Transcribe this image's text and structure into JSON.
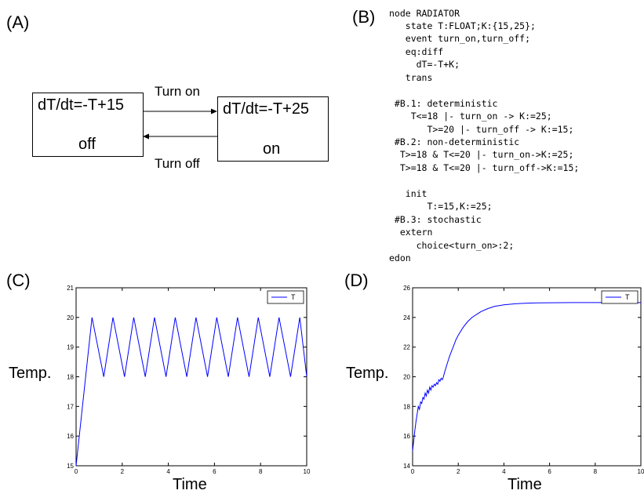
{
  "panels": {
    "a": "(A)",
    "b": "(B)",
    "c": "(C)",
    "d": "(D)"
  },
  "automaton": {
    "off_state": {
      "equation": "dT/dt=-T+15",
      "name": "off"
    },
    "on_state": {
      "equation": "dT/dt=-T+25",
      "name": "on"
    },
    "edges": {
      "turn_on": "Turn on",
      "turn_off": "Turn off"
    }
  },
  "code": {
    "lines": [
      "node RADIATOR",
      "   state T:FLOAT;K:{15,25};",
      "   event turn_on,turn_off;",
      "   eq:diff",
      "     dT=-T+K;",
      "   trans",
      "",
      " #B.1: deterministic",
      "    T<=18 |- turn_on -> K:=25;",
      "       T>=20 |- turn_off -> K:=15;",
      " #B.2: non-deterministic",
      "  T>=18 & T<=20 |- turn_on->K:=25;",
      "  T>=18 & T<=20 |- turn_off->K:=15;",
      "",
      "   init",
      "       T:=15,K:=25;",
      " #B.3: stochastic",
      "  extern",
      "     choice<turn_on>:2;",
      "edon"
    ]
  },
  "chart_data": [
    {
      "type": "line",
      "panel": "C",
      "xlabel": "Time",
      "ylabel": "Temp.",
      "xlim": [
        0,
        10
      ],
      "ylim": [
        15,
        21
      ],
      "xticks": [
        "0",
        "2",
        "4",
        "6",
        "8",
        "10"
      ],
      "yticks": [
        "15",
        "16",
        "17",
        "18",
        "19",
        "20",
        "21"
      ],
      "legend": "top-right",
      "grid": false,
      "series": [
        {
          "name": "T",
          "color": "#0000ff",
          "x": [
            0,
            0.69,
            1.2,
            1.6,
            2.1,
            2.5,
            3.0,
            3.4,
            3.9,
            4.3,
            4.8,
            5.2,
            5.7,
            6.1,
            6.6,
            7.0,
            7.5,
            7.9,
            8.4,
            8.8,
            9.3,
            9.7,
            10
          ],
          "y": [
            15,
            20,
            18,
            20,
            18,
            20,
            18,
            20,
            18,
            20,
            18,
            20,
            18,
            20,
            18,
            20,
            18,
            20,
            18,
            20,
            18,
            20,
            18
          ]
        }
      ]
    },
    {
      "type": "line",
      "panel": "D",
      "xlabel": "Time",
      "ylabel": "Temp.",
      "xlim": [
        0,
        10
      ],
      "ylim": [
        14,
        26
      ],
      "xticks": [
        "0",
        "2",
        "4",
        "6",
        "8",
        "10"
      ],
      "yticks": [
        "14",
        "16",
        "18",
        "20",
        "22",
        "24",
        "26"
      ],
      "legend": "top-right",
      "grid": false,
      "series": [
        {
          "name": "T",
          "color": "#0000ff",
          "x": [
            0,
            0.05,
            0.1,
            0.15,
            0.2,
            0.25,
            0.3,
            0.35,
            0.4,
            0.45,
            0.5,
            0.55,
            0.6,
            0.65,
            0.7,
            0.75,
            0.8,
            0.85,
            0.9,
            0.95,
            1.0,
            1.05,
            1.1,
            1.15,
            1.2,
            1.25,
            1.3,
            1.35,
            1.4,
            1.5,
            1.6,
            1.7,
            1.8,
            1.9,
            2.0,
            2.2,
            2.4,
            2.6,
            2.8,
            3.0,
            3.3,
            3.6,
            4.0,
            4.5,
            5.0,
            5.5,
            6.0,
            7.0,
            8.0,
            9.0,
            10.0
          ],
          "y": [
            15.0,
            15.7,
            16.4,
            17.0,
            17.5,
            18.0,
            17.8,
            18.3,
            18.2,
            18.6,
            18.5,
            18.9,
            18.7,
            19.1,
            18.9,
            19.3,
            19.1,
            19.4,
            19.3,
            19.5,
            19.4,
            19.6,
            19.5,
            19.8,
            19.7,
            19.9,
            19.8,
            20.0,
            20.3,
            20.8,
            21.3,
            21.7,
            22.1,
            22.5,
            22.8,
            23.3,
            23.7,
            24.0,
            24.2,
            24.4,
            24.6,
            24.75,
            24.85,
            24.92,
            24.96,
            24.98,
            24.99,
            25.0,
            25.0,
            25.0,
            25.0
          ]
        }
      ]
    }
  ]
}
